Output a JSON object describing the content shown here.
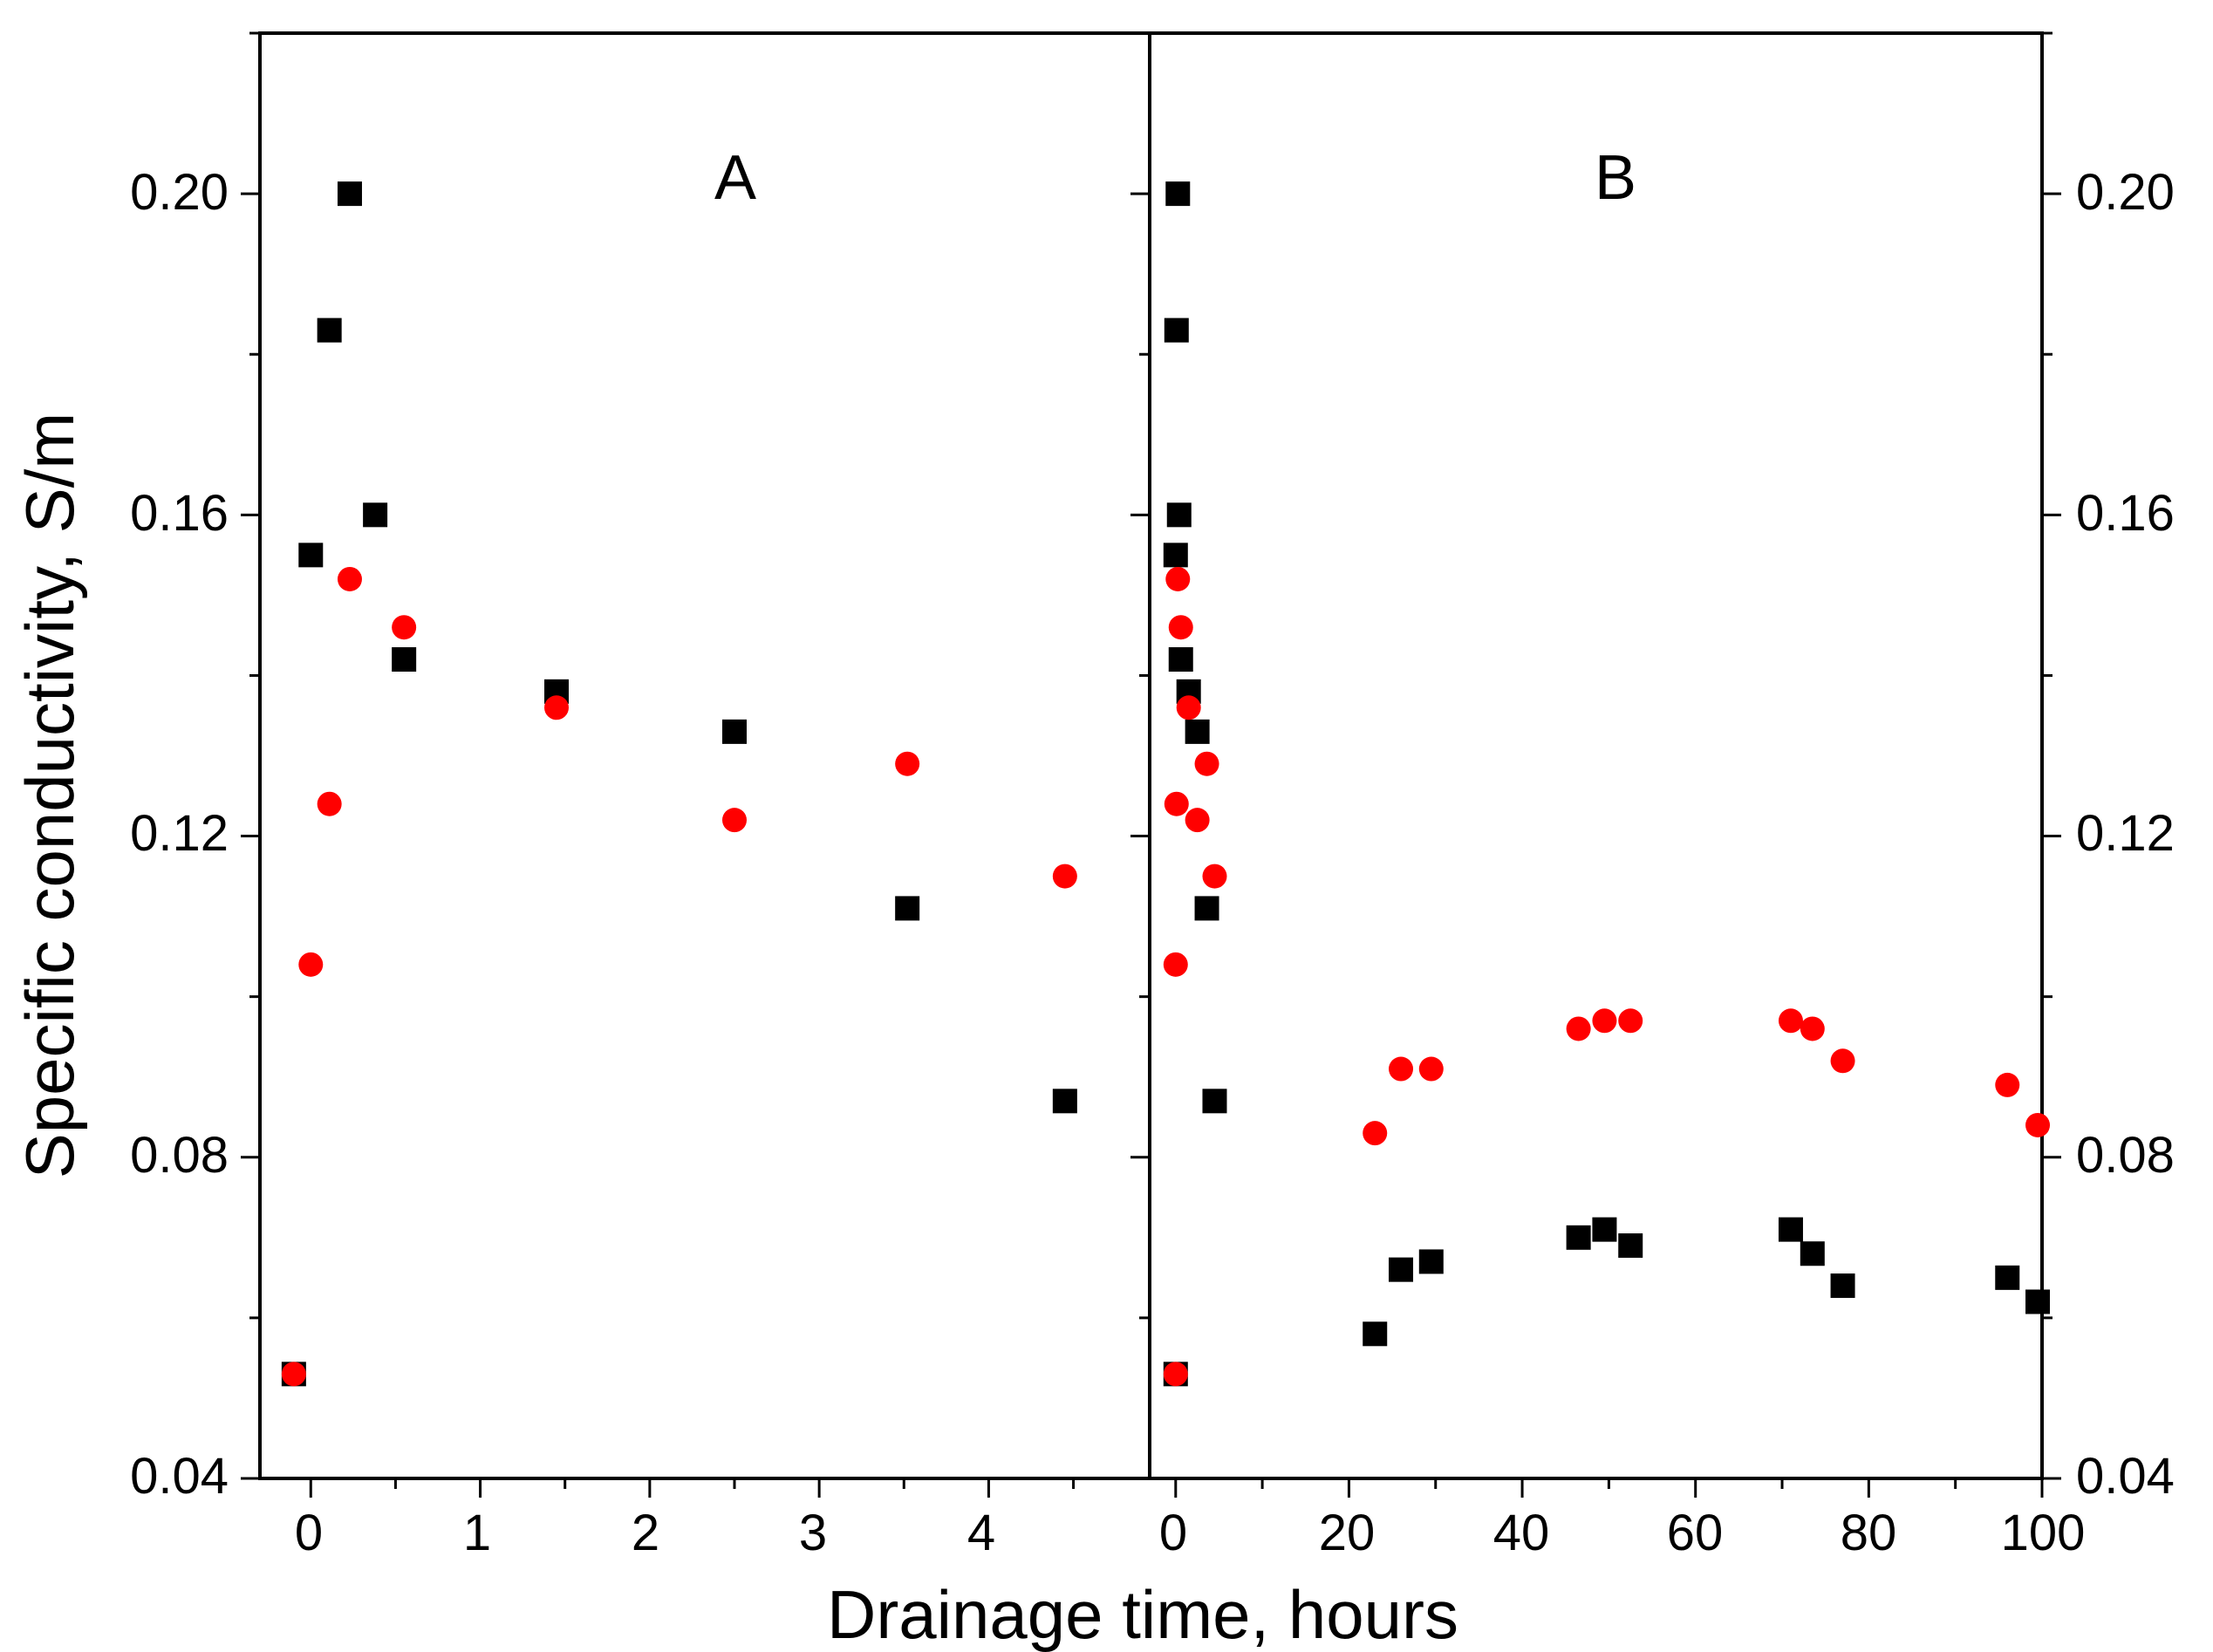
{
  "chart_data": {
    "type": "scatter",
    "xlabel": "Drainage time, hours",
    "ylabel": "Specific conductivity, S/m",
    "ylim": [
      0.04,
      0.22
    ],
    "yticks": [
      "0.04",
      "0.08",
      "0.12",
      "0.16",
      "0.20"
    ],
    "panels": [
      {
        "label": "A",
        "xlim": [
          -0.3,
          4.95
        ],
        "xticks": [
          "0",
          "1",
          "2",
          "3",
          "4"
        ],
        "series": [
          {
            "name": "black squares",
            "marker": "square",
            "color": "#000000",
            "points": [
              [
                -0.1,
                0.053
              ],
              [
                0.0,
                0.155
              ],
              [
                0.11,
                0.183
              ],
              [
                0.23,
                0.2
              ],
              [
                0.38,
                0.16
              ],
              [
                0.55,
                0.142
              ],
              [
                1.45,
                0.138
              ],
              [
                2.5,
                0.133
              ],
              [
                3.52,
                0.111
              ],
              [
                4.45,
                0.087
              ]
            ]
          },
          {
            "name": "red circles",
            "marker": "circle",
            "color": "#ff0000",
            "points": [
              [
                -0.1,
                0.053
              ],
              [
                0.0,
                0.104
              ],
              [
                0.11,
                0.124
              ],
              [
                0.23,
                0.152
              ],
              [
                0.55,
                0.146
              ],
              [
                1.45,
                0.136
              ],
              [
                2.5,
                0.122
              ],
              [
                3.52,
                0.129
              ],
              [
                4.45,
                0.115
              ]
            ]
          }
        ]
      },
      {
        "label": "B",
        "xlim": [
          -3,
          100
        ],
        "xticks": [
          "0",
          "20",
          "40",
          "60",
          "80",
          "100"
        ],
        "series": [
          {
            "name": "black squares",
            "marker": "square",
            "color": "#000000",
            "points": [
              [
                0,
                0.053
              ],
              [
                0,
                0.155
              ],
              [
                0.1,
                0.183
              ],
              [
                0.25,
                0.2
              ],
              [
                0.4,
                0.16
              ],
              [
                0.6,
                0.142
              ],
              [
                1.5,
                0.138
              ],
              [
                2.5,
                0.133
              ],
              [
                3.6,
                0.111
              ],
              [
                4.5,
                0.087
              ],
              [
                23,
                0.058
              ],
              [
                26,
                0.066
              ],
              [
                29.5,
                0.067
              ],
              [
                46.5,
                0.07
              ],
              [
                49.5,
                0.071
              ],
              [
                52.5,
                0.069
              ],
              [
                71,
                0.071
              ],
              [
                73.5,
                0.068
              ],
              [
                77,
                0.064
              ],
              [
                96,
                0.065
              ],
              [
                99.5,
                0.062
              ]
            ]
          },
          {
            "name": "red circles",
            "marker": "circle",
            "color": "#ff0000",
            "points": [
              [
                0,
                0.053
              ],
              [
                0,
                0.104
              ],
              [
                0.1,
                0.124
              ],
              [
                0.25,
                0.152
              ],
              [
                0.6,
                0.146
              ],
              [
                1.5,
                0.136
              ],
              [
                2.5,
                0.122
              ],
              [
                3.6,
                0.129
              ],
              [
                4.5,
                0.115
              ],
              [
                23,
                0.083
              ],
              [
                26,
                0.091
              ],
              [
                29.5,
                0.091
              ],
              [
                46.5,
                0.096
              ],
              [
                49.5,
                0.097
              ],
              [
                52.5,
                0.097
              ],
              [
                71,
                0.097
              ],
              [
                73.5,
                0.096
              ],
              [
                77,
                0.092
              ],
              [
                96,
                0.089
              ],
              [
                99.5,
                0.084
              ]
            ]
          }
        ]
      }
    ]
  }
}
